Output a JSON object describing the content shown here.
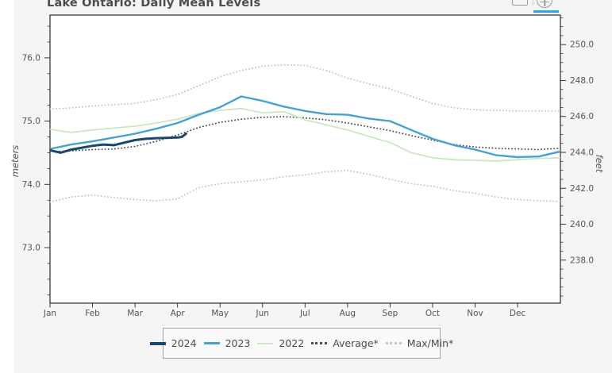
{
  "title": "Lake Ontario: Daily Mean Levels",
  "toolbar": {
    "active_color": "#29abe2",
    "buttons": [
      {
        "icon": "box-zoom-icon",
        "active": false
      },
      {
        "icon": "reset-zoom-icon",
        "active": true
      }
    ]
  },
  "axes": {
    "left": {
      "label": "meters",
      "ticks": [
        "73.0",
        "74.0",
        "75.0",
        "76.0"
      ]
    },
    "right": {
      "label": "feet",
      "ticks": [
        "238.0",
        "240.0",
        "242.0",
        "244.0",
        "246.0",
        "248.0",
        "250.0"
      ]
    },
    "x": {
      "tick_labels": [
        "Jan",
        "Feb",
        "Mar",
        "Apr",
        "May",
        "Jun",
        "Jul",
        "Aug",
        "Sep",
        "Oct",
        "Nov",
        "Dec"
      ]
    }
  },
  "legend": {
    "items": [
      {
        "label": "2024",
        "color": "#1b4672",
        "line": "solid",
        "thickness": 4
      },
      {
        "label": "2023",
        "color": "#45a2d2",
        "line": "solid",
        "thickness": 3
      },
      {
        "label": "2022",
        "color": "#cbe6c3",
        "line": "solid",
        "thickness": 2
      },
      {
        "label": "Average*",
        "color": "#4d4d4d",
        "line": "dotted",
        "thickness": 3
      },
      {
        "label": "Max/Min*",
        "color": "#c6c6c6",
        "line": "dotted",
        "thickness": 3
      }
    ]
  },
  "chart_data": {
    "type": "line",
    "title": "Lake Ontario: Daily Mean Levels",
    "xlabel": "",
    "ylabel_left": "meters",
    "ylabel_right": "feet",
    "x_unit": "month index (0 = Jan 1, 11 = Dec 1, 12 = Dec 31)",
    "ylim_meters": [
      72.1,
      76.7
    ],
    "ylim_feet": [
      235.6,
      251.7
    ],
    "grid": false,
    "legend_position": "bottom-center",
    "x": [
      0,
      0.5,
      1,
      1.5,
      2,
      2.5,
      3,
      3.5,
      4,
      4.5,
      5,
      5.5,
      6,
      6.5,
      7,
      7.5,
      8,
      8.5,
      9,
      9.5,
      10,
      10.5,
      11,
      11.5,
      12
    ],
    "series": [
      {
        "name": "2024",
        "color": "#1b4672",
        "style": "solid",
        "width": 3,
        "x": [
          0,
          0.25,
          0.5,
          0.75,
          1,
          1.25,
          1.5,
          2,
          2.25,
          2.5,
          3,
          3.1,
          3.2
        ],
        "values": [
          74.54,
          74.5,
          74.55,
          74.58,
          74.61,
          74.63,
          74.62,
          74.7,
          74.72,
          74.73,
          74.74,
          74.75,
          74.8
        ]
      },
      {
        "name": "2023",
        "color": "#45a2d2",
        "style": "solid",
        "width": 2.4,
        "values": [
          74.56,
          74.63,
          74.68,
          74.74,
          74.8,
          74.88,
          74.97,
          75.1,
          75.22,
          75.39,
          75.32,
          75.23,
          75.16,
          75.11,
          75.1,
          75.04,
          75.0,
          74.86,
          74.72,
          74.62,
          74.55,
          74.46,
          74.43,
          74.44,
          74.52
        ]
      },
      {
        "name": "2022",
        "color": "#cbe6c3",
        "style": "solid",
        "width": 1.8,
        "values": [
          74.87,
          74.82,
          74.86,
          74.89,
          74.92,
          74.97,
          75.03,
          75.12,
          75.17,
          75.2,
          75.13,
          75.15,
          75.02,
          74.94,
          74.86,
          74.76,
          74.66,
          74.5,
          74.42,
          74.39,
          74.38,
          74.37,
          74.39,
          74.41,
          74.42
        ]
      },
      {
        "name": "Average*",
        "color": "#4d4d4d",
        "style": "dotted",
        "width": 1.9,
        "values": [
          74.52,
          74.53,
          74.55,
          74.56,
          74.6,
          74.68,
          74.78,
          74.9,
          74.98,
          75.03,
          75.06,
          75.07,
          75.05,
          75.02,
          74.97,
          74.91,
          74.85,
          74.77,
          74.7,
          74.63,
          74.59,
          74.57,
          74.56,
          74.55,
          74.57
        ]
      },
      {
        "name": "Max*",
        "legend_label": "Max/Min*",
        "color": "#c6c6c6",
        "style": "dotted",
        "width": 1.9,
        "values": [
          75.19,
          75.21,
          75.24,
          75.26,
          75.28,
          75.34,
          75.42,
          75.56,
          75.7,
          75.8,
          75.87,
          75.89,
          75.88,
          75.8,
          75.68,
          75.59,
          75.51,
          75.39,
          75.28,
          75.21,
          75.18,
          75.17,
          75.16,
          75.16,
          75.16
        ]
      },
      {
        "name": "Min*",
        "legend_label": "Max/Min*",
        "color": "#c6c6c6",
        "style": "dotted",
        "width": 1.9,
        "values": [
          73.72,
          73.8,
          73.83,
          73.79,
          73.76,
          73.74,
          73.77,
          73.95,
          74.01,
          74.04,
          74.07,
          74.12,
          74.15,
          74.2,
          74.22,
          74.16,
          74.08,
          74.01,
          73.97,
          73.9,
          73.86,
          73.8,
          73.76,
          73.74,
          73.73
        ]
      }
    ]
  }
}
